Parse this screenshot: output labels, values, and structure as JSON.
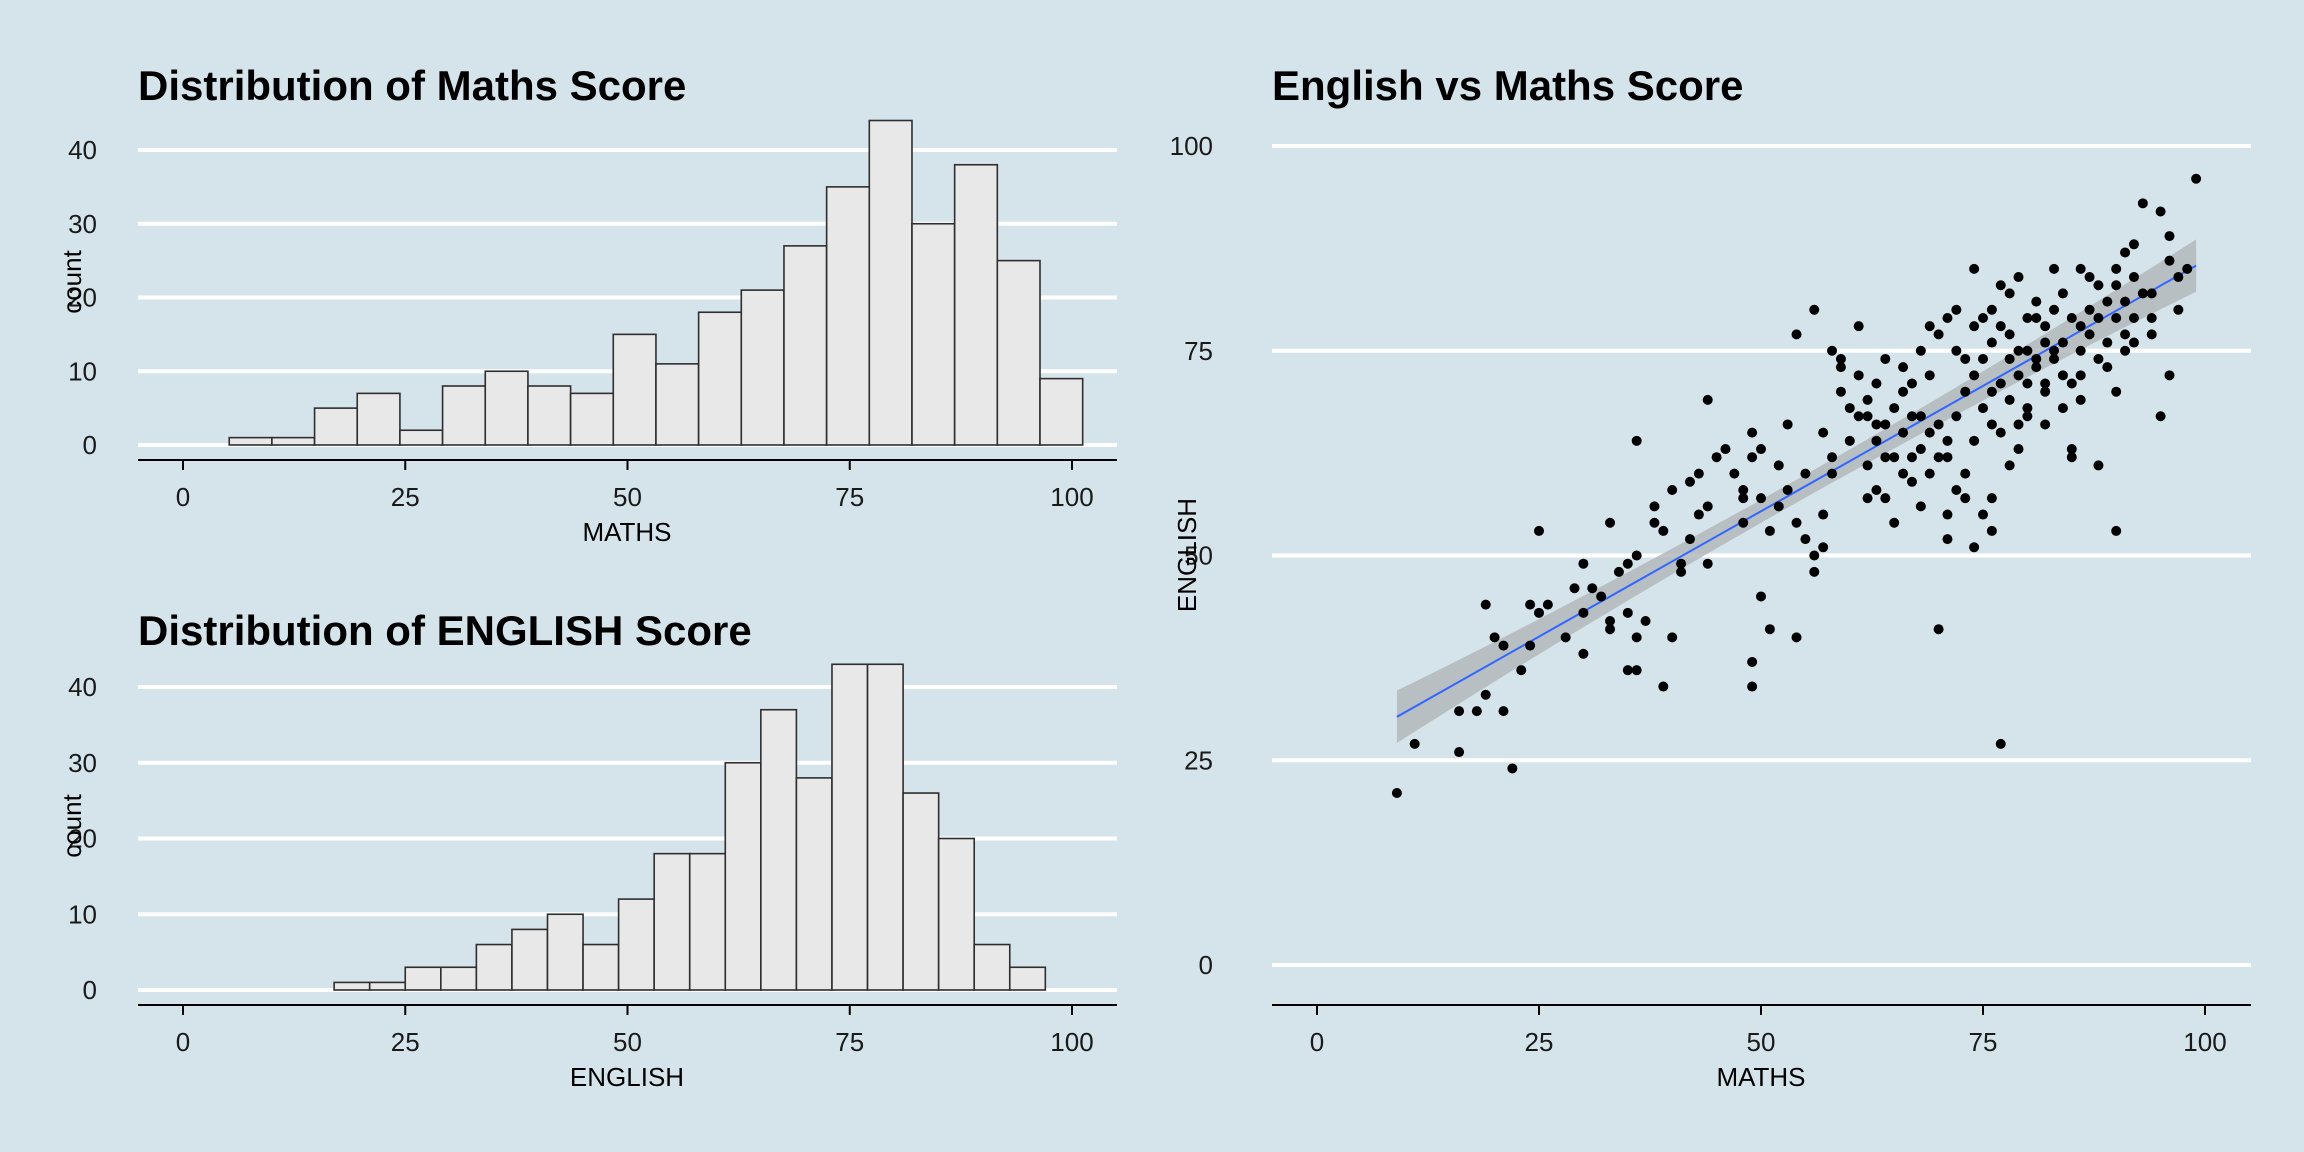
{
  "colors": {
    "background": "#d5e4eb",
    "bar_fill": "#e8e8e8",
    "bar_outline": "#2e2e2e",
    "point": "#000000",
    "trend_line": "#3366ff",
    "confidence_band": "#b3b8bb",
    "gridline": "#ffffff"
  },
  "chart_data": [
    {
      "type": "bar",
      "title": "Distribution of Maths Score",
      "xlabel": "MATHS",
      "ylabel": "count",
      "xlim": [
        0,
        105
      ],
      "ylim": [
        0,
        45
      ],
      "xticks": [
        0,
        25,
        50,
        75,
        100
      ],
      "yticks": [
        0,
        10,
        20,
        30,
        40
      ],
      "grid": "horizontal",
      "bin_width": 4.8,
      "bin_left_edges": [
        5.2,
        10.0,
        14.8,
        19.6,
        24.4,
        29.2,
        34.0,
        38.8,
        43.6,
        48.4,
        53.2,
        58.0,
        62.8,
        67.6,
        72.4,
        77.2,
        82.0,
        86.8,
        91.6,
        96.4
      ],
      "values": [
        1,
        1,
        5,
        7,
        2,
        8,
        10,
        8,
        7,
        15,
        11,
        18,
        21,
        27,
        35,
        44,
        30,
        38,
        25,
        9
      ]
    },
    {
      "type": "bar",
      "title": "Distribution of ENGLISH Score",
      "xlabel": "ENGLISH",
      "ylabel": "count",
      "xlim": [
        0,
        105
      ],
      "ylim": [
        0,
        45
      ],
      "xticks": [
        0,
        25,
        50,
        75,
        100
      ],
      "yticks": [
        0,
        10,
        20,
        30,
        40
      ],
      "grid": "horizontal",
      "bin_width": 4.0,
      "bin_left_edges": [
        17,
        21,
        25,
        29,
        33,
        37,
        41,
        45,
        49,
        53,
        57,
        61,
        65,
        69,
        73,
        77,
        81,
        85,
        89,
        93
      ],
      "values": [
        1,
        1,
        3,
        3,
        6,
        8,
        10,
        6,
        12,
        18,
        18,
        30,
        37,
        28,
        43,
        43,
        26,
        20,
        6,
        3
      ]
    },
    {
      "type": "scatter",
      "title": "English vs Maths Score",
      "xlabel": "MATHS",
      "ylabel": "ENGLISH",
      "xlim": [
        0,
        105
      ],
      "ylim": [
        0,
        100
      ],
      "xticks": [
        0,
        25,
        50,
        75,
        100
      ],
      "yticks": [
        0,
        25,
        50,
        75,
        100
      ],
      "grid": "horizontal",
      "trend": {
        "method": "linear",
        "x": [
          9,
          99
        ],
        "y": [
          30.3,
          85.4
        ],
        "band_halfwidth_ends": 3.2,
        "band_halfwidth_center": 1.4
      },
      "points": [
        [
          9,
          21
        ],
        [
          11,
          27
        ],
        [
          16,
          26
        ],
        [
          16,
          31
        ],
        [
          18,
          31
        ],
        [
          19,
          33
        ],
        [
          19,
          44
        ],
        [
          20,
          40
        ],
        [
          21,
          39
        ],
        [
          21,
          31
        ],
        [
          22,
          24
        ],
        [
          23,
          36
        ],
        [
          24,
          44
        ],
        [
          24,
          39
        ],
        [
          25,
          43
        ],
        [
          25,
          53
        ],
        [
          30,
          38
        ],
        [
          30,
          43
        ],
        [
          30,
          49
        ],
        [
          31,
          46
        ],
        [
          32,
          45
        ],
        [
          33,
          41
        ],
        [
          33,
          42
        ],
        [
          33,
          54
        ],
        [
          35,
          49
        ],
        [
          35,
          43
        ],
        [
          35,
          36
        ],
        [
          36,
          36
        ],
        [
          36,
          40
        ],
        [
          36,
          50
        ],
        [
          36,
          64
        ],
        [
          37,
          42
        ],
        [
          38,
          56
        ],
        [
          38,
          54
        ],
        [
          39,
          34
        ],
        [
          40,
          40
        ],
        [
          40,
          58
        ],
        [
          41,
          48
        ],
        [
          41,
          49
        ],
        [
          42,
          52
        ],
        [
          43,
          55
        ],
        [
          43,
          60
        ],
        [
          44,
          49
        ],
        [
          44,
          56
        ],
        [
          44,
          69
        ],
        [
          45,
          62
        ],
        [
          46,
          63
        ],
        [
          48,
          54
        ],
        [
          48,
          58
        ],
        [
          48,
          57
        ],
        [
          49,
          34
        ],
        [
          49,
          37
        ],
        [
          49,
          62
        ],
        [
          49,
          65
        ],
        [
          50,
          45
        ],
        [
          50,
          57
        ],
        [
          50,
          63
        ],
        [
          51,
          53
        ],
        [
          51,
          41
        ],
        [
          52,
          56
        ],
        [
          52,
          61
        ],
        [
          53,
          66
        ],
        [
          54,
          40
        ],
        [
          54,
          54
        ],
        [
          54,
          77
        ],
        [
          55,
          52
        ],
        [
          55,
          60
        ],
        [
          56,
          48
        ],
        [
          56,
          50
        ],
        [
          56,
          80
        ],
        [
          57,
          51
        ],
        [
          57,
          55
        ],
        [
          58,
          60
        ],
        [
          58,
          62
        ],
        [
          58,
          75
        ],
        [
          59,
          73
        ],
        [
          59,
          74
        ],
        [
          60,
          68
        ],
        [
          60,
          64
        ],
        [
          61,
          67
        ],
        [
          61,
          78
        ],
        [
          62,
          67
        ],
        [
          62,
          69
        ],
        [
          62,
          57
        ],
        [
          62,
          61
        ],
        [
          63,
          71
        ],
        [
          63,
          58
        ],
        [
          63,
          66
        ],
        [
          64,
          62
        ],
        [
          64,
          66
        ],
        [
          64,
          74
        ],
        [
          65,
          62
        ],
        [
          65,
          68
        ],
        [
          65,
          54
        ],
        [
          66,
          70
        ],
        [
          66,
          73
        ],
        [
          66,
          65
        ],
        [
          67,
          62
        ],
        [
          67,
          67
        ],
        [
          67,
          71
        ],
        [
          68,
          67
        ],
        [
          68,
          75
        ],
        [
          68,
          63
        ],
        [
          69,
          72
        ],
        [
          69,
          65
        ],
        [
          69,
          78
        ],
        [
          70,
          62
        ],
        [
          70,
          66
        ],
        [
          70,
          77
        ],
        [
          71,
          55
        ],
        [
          71,
          62
        ],
        [
          71,
          79
        ],
        [
          71,
          64
        ],
        [
          72,
          67
        ],
        [
          72,
          75
        ],
        [
          72,
          80
        ],
        [
          73,
          70
        ],
        [
          73,
          74
        ],
        [
          73,
          60
        ],
        [
          73,
          57
        ],
        [
          74,
          85
        ],
        [
          74,
          72
        ],
        [
          74,
          78
        ],
        [
          74,
          51
        ],
        [
          75,
          74
        ],
        [
          75,
          79
        ],
        [
          75,
          68
        ],
        [
          76,
          80
        ],
        [
          76,
          70
        ],
        [
          76,
          66
        ],
        [
          76,
          76
        ],
        [
          77,
          27
        ],
        [
          77,
          71
        ],
        [
          77,
          78
        ],
        [
          77,
          83
        ],
        [
          77,
          65
        ],
        [
          78,
          77
        ],
        [
          78,
          74
        ],
        [
          78,
          69
        ],
        [
          78,
          82
        ],
        [
          78,
          61
        ],
        [
          79,
          66
        ],
        [
          79,
          72
        ],
        [
          79,
          84
        ],
        [
          79,
          75
        ],
        [
          80,
          79
        ],
        [
          80,
          68
        ],
        [
          80,
          71
        ],
        [
          80,
          67
        ],
        [
          80,
          75
        ],
        [
          81,
          81
        ],
        [
          81,
          74
        ],
        [
          81,
          79
        ],
        [
          81,
          73
        ],
        [
          82,
          71
        ],
        [
          82,
          76
        ],
        [
          82,
          78
        ],
        [
          82,
          70
        ],
        [
          83,
          80
        ],
        [
          83,
          74
        ],
        [
          83,
          85
        ],
        [
          83,
          75
        ],
        [
          84,
          82
        ],
        [
          84,
          76
        ],
        [
          84,
          72
        ],
        [
          85,
          79
        ],
        [
          85,
          63
        ],
        [
          85,
          62
        ],
        [
          85,
          71
        ],
        [
          86,
          85
        ],
        [
          86,
          75
        ],
        [
          86,
          69
        ],
        [
          86,
          78
        ],
        [
          87,
          77
        ],
        [
          87,
          84
        ],
        [
          87,
          80
        ],
        [
          88,
          79
        ],
        [
          88,
          83
        ],
        [
          88,
          61
        ],
        [
          89,
          76
        ],
        [
          89,
          81
        ],
        [
          89,
          73
        ],
        [
          90,
          85
        ],
        [
          90,
          83
        ],
        [
          90,
          79
        ],
        [
          90,
          53
        ],
        [
          90,
          70
        ],
        [
          91,
          87
        ],
        [
          91,
          81
        ],
        [
          91,
          77
        ],
        [
          91,
          75
        ],
        [
          92,
          88
        ],
        [
          92,
          84
        ],
        [
          92,
          79
        ],
        [
          93,
          82
        ],
        [
          93,
          93
        ],
        [
          94,
          79
        ],
        [
          94,
          77
        ],
        [
          95,
          92
        ],
        [
          95,
          67
        ],
        [
          96,
          72
        ],
        [
          96,
          89
        ],
        [
          97,
          84
        ],
        [
          97,
          80
        ],
        [
          98,
          85
        ],
        [
          99,
          96
        ],
        [
          26,
          44
        ],
        [
          28,
          40
        ],
        [
          29,
          46
        ],
        [
          34,
          48
        ],
        [
          39,
          53
        ],
        [
          42,
          59
        ],
        [
          47,
          60
        ],
        [
          53,
          58
        ],
        [
          57,
          65
        ],
        [
          59,
          70
        ],
        [
          61,
          72
        ],
        [
          63,
          64
        ],
        [
          67,
          59
        ],
        [
          69,
          60
        ],
        [
          72,
          58
        ],
        [
          75,
          55
        ],
        [
          79,
          63
        ],
        [
          82,
          66
        ],
        [
          84,
          68
        ],
        [
          86,
          72
        ],
        [
          88,
          74
        ],
        [
          92,
          76
        ],
        [
          94,
          82
        ],
        [
          96,
          86
        ],
        [
          70,
          41
        ],
        [
          71,
          52
        ],
        [
          76,
          53
        ],
        [
          76,
          57
        ],
        [
          74,
          64
        ],
        [
          68,
          56
        ],
        [
          66,
          60
        ],
        [
          64,
          57
        ]
      ]
    }
  ]
}
